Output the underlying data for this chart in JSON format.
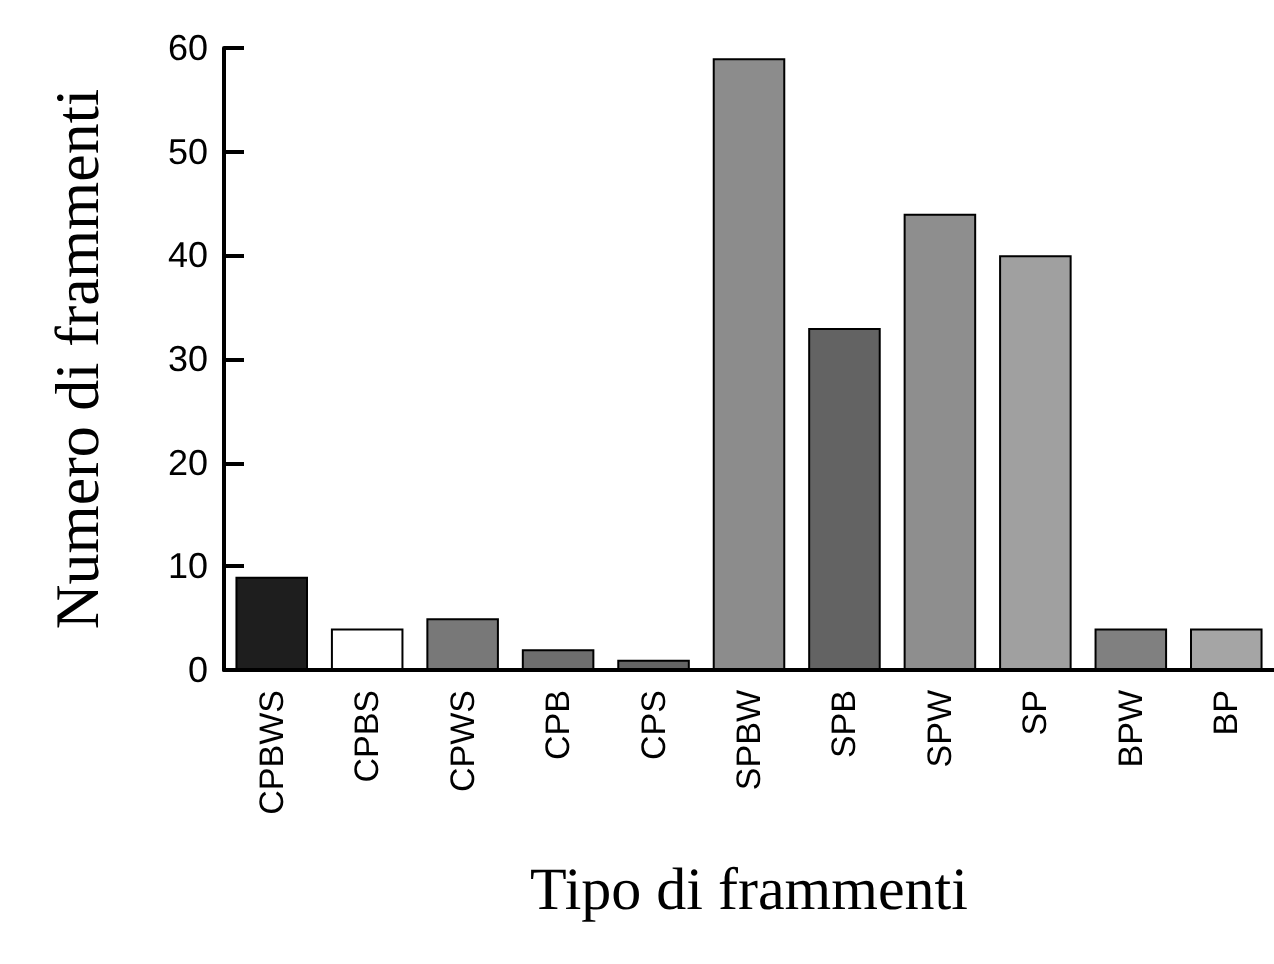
{
  "chart_data": {
    "type": "bar",
    "xlabel": "Tipo di frammenti",
    "ylabel": "Numero di frammenti",
    "categories": [
      "CPBWS",
      "CPBS",
      "CPWS",
      "CPB",
      "CPS",
      "SPBW",
      "SPB",
      "SPW",
      "SP",
      "BPW",
      "BP"
    ],
    "values": [
      9,
      4,
      5,
      2,
      1,
      59,
      33,
      44,
      40,
      4,
      4
    ],
    "colors": [
      "#1e1e1e",
      "#ffffff",
      "#787878",
      "#6e6e6e",
      "#646464",
      "#8c8c8c",
      "#636363",
      "#8e8e8e",
      "#a0a0a0",
      "#808080",
      "#a5a5a5"
    ],
    "ylim": [
      0,
      60
    ],
    "yticks": [
      0,
      10,
      20,
      30,
      40,
      50,
      60
    ]
  }
}
